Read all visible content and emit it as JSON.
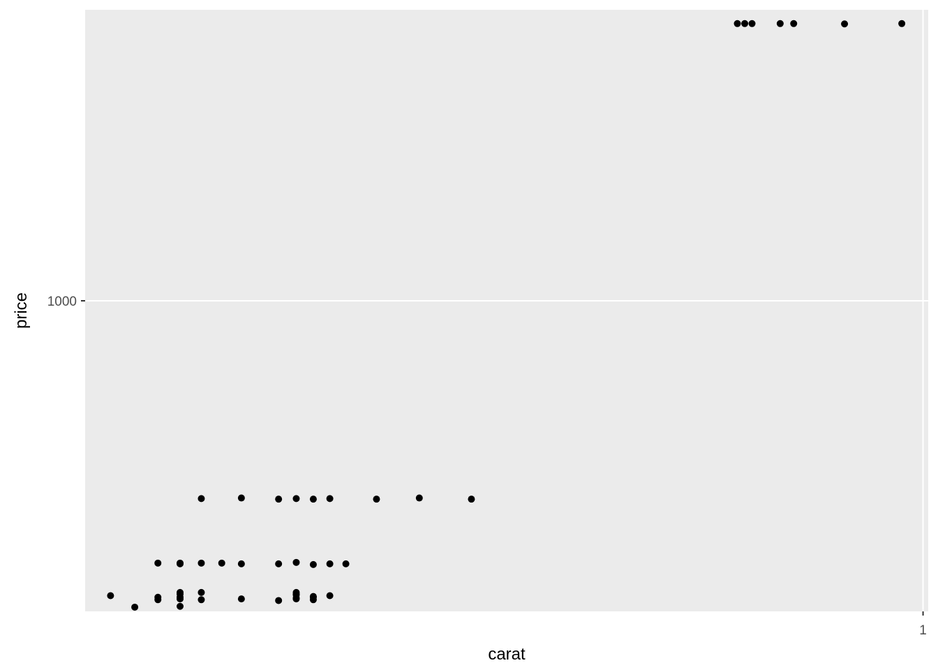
{
  "chart_data": {
    "type": "scatter",
    "xlabel": "carat",
    "ylabel": "price",
    "x_scale": "log10",
    "y_scale": "log10",
    "xlim": [
      0.2,
      1.01
    ],
    "ylim": [
      321,
      2900
    ],
    "x_ticks": [
      {
        "value": 1,
        "label": "1"
      }
    ],
    "y_ticks": [
      {
        "value": 1000,
        "label": "1000"
      }
    ],
    "grid": true,
    "legend": "none",
    "colors": {
      "panel_background": "#ebebeb",
      "grid_major": "#ffffff",
      "grid_minor": "#f5f5f5",
      "point": "#000000",
      "tick_mark": "#333333"
    },
    "points": [
      {
        "x": 0.21,
        "y": 340
      },
      {
        "x": 0.22,
        "y": 326
      },
      {
        "x": 0.23,
        "y": 338
      },
      {
        "x": 0.23,
        "y": 335
      },
      {
        "x": 0.24,
        "y": 344
      },
      {
        "x": 0.24,
        "y": 342
      },
      {
        "x": 0.24,
        "y": 338
      },
      {
        "x": 0.24,
        "y": 336
      },
      {
        "x": 0.24,
        "y": 327
      },
      {
        "x": 0.25,
        "y": 344
      },
      {
        "x": 0.25,
        "y": 335
      },
      {
        "x": 0.27,
        "y": 336
      },
      {
        "x": 0.29,
        "y": 334
      },
      {
        "x": 0.3,
        "y": 344
      },
      {
        "x": 0.3,
        "y": 342
      },
      {
        "x": 0.3,
        "y": 341
      },
      {
        "x": 0.3,
        "y": 337
      },
      {
        "x": 0.3,
        "y": 336
      },
      {
        "x": 0.31,
        "y": 339
      },
      {
        "x": 0.31,
        "y": 338
      },
      {
        "x": 0.31,
        "y": 335
      },
      {
        "x": 0.32,
        "y": 340
      },
      {
        "x": 0.23,
        "y": 383
      },
      {
        "x": 0.24,
        "y": 383
      },
      {
        "x": 0.24,
        "y": 382
      },
      {
        "x": 0.25,
        "y": 383
      },
      {
        "x": 0.26,
        "y": 383
      },
      {
        "x": 0.27,
        "y": 382
      },
      {
        "x": 0.29,
        "y": 382
      },
      {
        "x": 0.3,
        "y": 384
      },
      {
        "x": 0.31,
        "y": 381
      },
      {
        "x": 0.32,
        "y": 382
      },
      {
        "x": 0.33,
        "y": 382
      },
      {
        "x": 0.25,
        "y": 485
      },
      {
        "x": 0.27,
        "y": 486
      },
      {
        "x": 0.29,
        "y": 484
      },
      {
        "x": 0.3,
        "y": 485
      },
      {
        "x": 0.31,
        "y": 484
      },
      {
        "x": 0.32,
        "y": 485
      },
      {
        "x": 0.35,
        "y": 484
      },
      {
        "x": 0.38,
        "y": 486
      },
      {
        "x": 0.42,
        "y": 484
      },
      {
        "x": 0.7,
        "y": 2757
      },
      {
        "x": 0.71,
        "y": 2757
      },
      {
        "x": 0.72,
        "y": 2757
      },
      {
        "x": 0.76,
        "y": 2757
      },
      {
        "x": 0.78,
        "y": 2757
      },
      {
        "x": 0.86,
        "y": 2754
      },
      {
        "x": 0.96,
        "y": 2757
      }
    ]
  }
}
